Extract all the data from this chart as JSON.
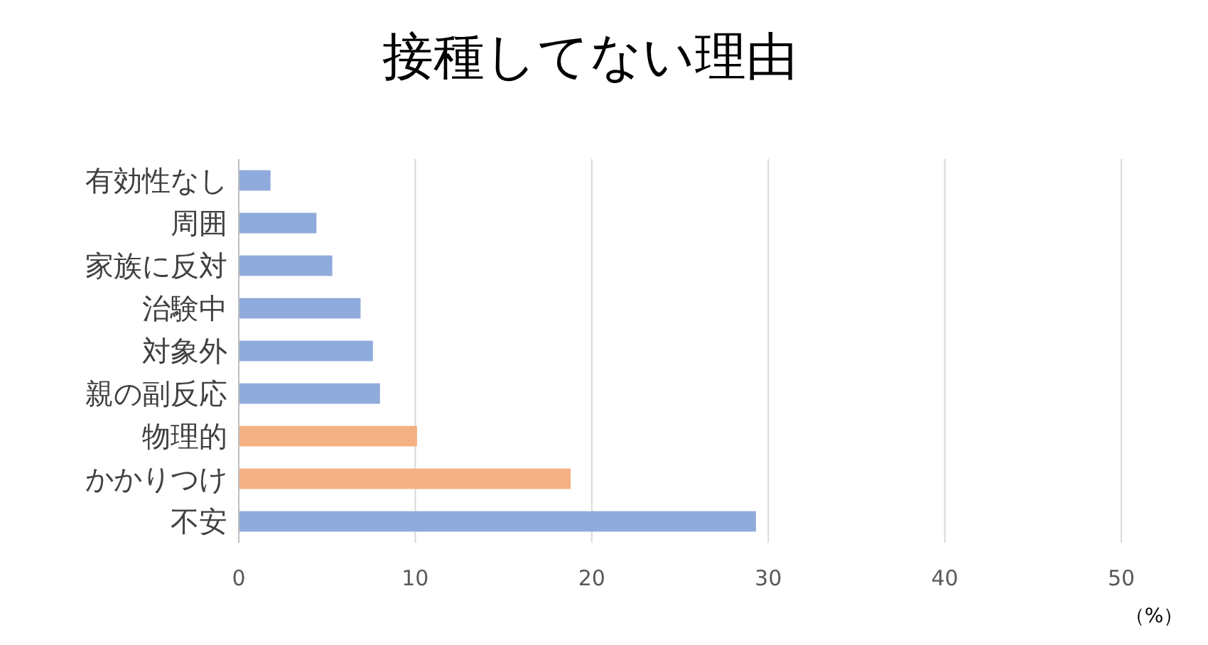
{
  "chart_data": {
    "type": "bar",
    "orientation": "horizontal",
    "title": "接種してない理由",
    "xlabel": "（%）",
    "categories": [
      "有効性なし",
      "周囲",
      "家族に反対",
      "治験中",
      "対象外",
      "親の副反応",
      "物理的",
      "かかりつけ",
      "不安"
    ],
    "values": [
      1.8,
      4.4,
      5.3,
      6.9,
      7.6,
      8.0,
      10.1,
      18.8,
      29.3
    ],
    "colors": [
      "#8faadc",
      "#8faadc",
      "#8faadc",
      "#8faadc",
      "#8faadc",
      "#8faadc",
      "#f4b183",
      "#f4b183",
      "#8faadc"
    ],
    "xlim": [
      0,
      50
    ],
    "xticks": [
      0,
      10,
      20,
      30,
      40,
      50
    ],
    "grid": "x"
  }
}
